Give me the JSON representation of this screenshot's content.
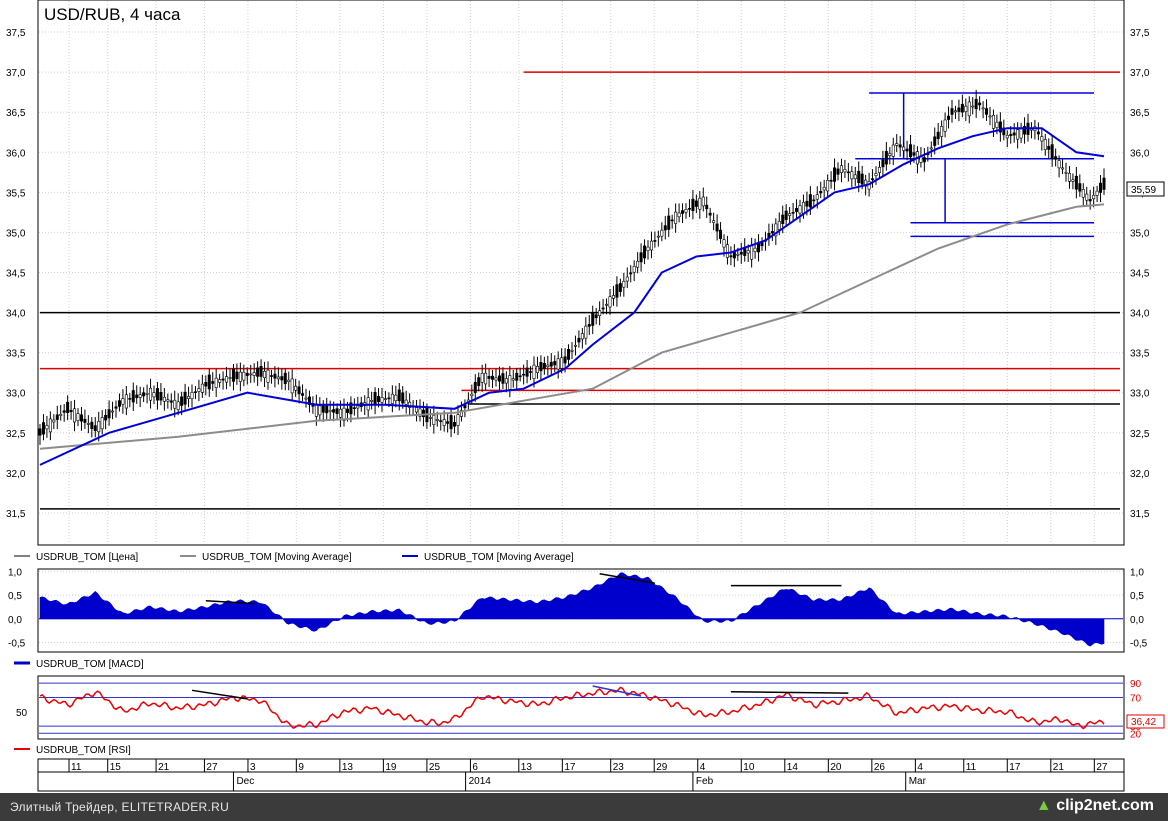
{
  "chart_title": "USD/RUB, 4 часа",
  "colors": {
    "grid": "#d0d0d0",
    "axis": "#000000",
    "candles": "#000000",
    "ma_long": "#8c8c8c",
    "ma_short": "#0000dd",
    "resistance": "#dd0000",
    "support": "#000000",
    "macd": "#0000cc",
    "rsi": "#ee0000",
    "rsi_band": "#3333cc",
    "divergence": "#000000"
  },
  "chart_data": [
    {
      "type": "line",
      "panel": "price",
      "title": "USD/RUB, 4 часа",
      "ylim": [
        31.1,
        37.9
      ],
      "yticks": [
        "37,5",
        "37,0",
        "36,5",
        "36,0",
        "35,5",
        "35,0",
        "34,5",
        "34,0",
        "33,5",
        "33,0",
        "32,5",
        "32,0",
        "31,5"
      ],
      "last_value_label": "35,59",
      "last_value": 35.59,
      "legend": [
        "USDRUB_TOM [Цена]",
        "USDRUB_TOM [Moving Average]",
        "USDRUB_TOM [Moving Average]"
      ],
      "x_index_range": [
        0,
        154
      ],
      "price": {
        "x": [
          0,
          4,
          8,
          12,
          16,
          20,
          24,
          28,
          32,
          36,
          40,
          44,
          48,
          52,
          56,
          60,
          64,
          68,
          72,
          76,
          80,
          84,
          88,
          92,
          96,
          100,
          104,
          108,
          112,
          116,
          120,
          124,
          128,
          132,
          136,
          140,
          144,
          148,
          152,
          154
        ],
        "y": [
          32.5,
          32.8,
          32.55,
          32.9,
          33.0,
          32.85,
          33.1,
          33.2,
          33.25,
          33.15,
          32.8,
          32.75,
          32.9,
          32.95,
          32.7,
          32.6,
          33.2,
          33.15,
          33.3,
          33.4,
          33.9,
          34.3,
          34.8,
          35.2,
          35.4,
          34.7,
          34.8,
          35.2,
          35.4,
          35.8,
          35.6,
          36.1,
          35.9,
          36.5,
          36.6,
          36.2,
          36.3,
          35.8,
          35.4,
          35.59
        ]
      },
      "series": [
        {
          "name": "USDRUB_TOM [Moving Average]",
          "role": "long",
          "x": [
            0,
            20,
            40,
            60,
            70,
            80,
            90,
            100,
            110,
            120,
            130,
            140,
            150,
            154
          ],
          "y": [
            32.3,
            32.45,
            32.65,
            32.75,
            32.9,
            33.05,
            33.5,
            33.75,
            34.0,
            34.4,
            34.8,
            35.1,
            35.32,
            35.35
          ]
        },
        {
          "name": "USDRUB_TOM [Moving Average]",
          "role": "short",
          "x": [
            0,
            10,
            20,
            30,
            40,
            50,
            60,
            65,
            70,
            76,
            80,
            86,
            90,
            95,
            100,
            105,
            110,
            115,
            120,
            125,
            130,
            135,
            140,
            145,
            150,
            154
          ],
          "y": [
            32.1,
            32.5,
            32.75,
            33.0,
            32.85,
            32.85,
            32.8,
            33.0,
            33.05,
            33.3,
            33.6,
            34.0,
            34.5,
            34.7,
            34.75,
            34.9,
            35.2,
            35.5,
            35.6,
            35.85,
            36.05,
            36.2,
            36.3,
            36.3,
            36.0,
            35.95
          ]
        }
      ],
      "horizontal_lines": [
        {
          "y": 37.0,
          "role": "resistance",
          "x_from": 70,
          "x_to": 154
        },
        {
          "y": 33.3,
          "role": "resistance",
          "x_from": 0,
          "x_to": 154
        },
        {
          "y": 33.03,
          "role": "resistance",
          "x_from": 61,
          "x_to": 154
        },
        {
          "y": 34.0,
          "role": "support",
          "x_from": 0,
          "x_to": 154
        },
        {
          "y": 32.86,
          "role": "support",
          "x_from": 62,
          "x_to": 154
        },
        {
          "y": 31.55,
          "role": "support",
          "x_from": 0,
          "x_to": 154
        }
      ],
      "channel_lines": [
        {
          "y": 36.74,
          "x_from": 120,
          "x_to": 154
        },
        {
          "y": 35.92,
          "x_from": 118,
          "x_to": 154
        },
        {
          "y": 35.12,
          "x_from": 126,
          "x_to": 154
        },
        {
          "y": 34.95,
          "x_from": 126,
          "x_to": 154
        }
      ]
    },
    {
      "type": "area",
      "panel": "macd",
      "ylim": [
        -0.7,
        1.05
      ],
      "yticks": [
        "1,0",
        "0,5",
        "0,0",
        "-0,5"
      ],
      "legend": "USDRUB_TOM [MACD]",
      "x": [
        0,
        4,
        8,
        12,
        16,
        20,
        24,
        28,
        32,
        36,
        40,
        44,
        48,
        52,
        56,
        58,
        60,
        64,
        68,
        72,
        76,
        80,
        84,
        88,
        92,
        96,
        100,
        104,
        108,
        112,
        116,
        120,
        124,
        128,
        132,
        136,
        140,
        144,
        148,
        152,
        154
      ],
      "y": [
        0.45,
        0.3,
        0.55,
        0.1,
        0.25,
        0.15,
        0.25,
        0.38,
        0.35,
        -0.1,
        -0.25,
        0.05,
        0.15,
        0.18,
        -0.1,
        -0.08,
        -0.05,
        0.45,
        0.4,
        0.35,
        0.45,
        0.65,
        0.95,
        0.85,
        0.45,
        -0.05,
        -0.05,
        0.3,
        0.65,
        0.4,
        0.4,
        0.65,
        0.1,
        0.15,
        0.2,
        0.1,
        0.05,
        -0.1,
        -0.3,
        -0.55,
        -0.5
      ]
    },
    {
      "type": "line",
      "panel": "rsi",
      "ylim": [
        12,
        100
      ],
      "yticks_left": [
        "50"
      ],
      "yticks_right": [
        "90",
        "70",
        "30",
        "20"
      ],
      "rsi_bands": [
        90,
        70,
        30,
        20
      ],
      "last_value_label": "36,42",
      "last_value": 36.42,
      "legend": "USDRUB_TOM [RSI]",
      "x": [
        0,
        4,
        8,
        12,
        16,
        20,
        24,
        28,
        32,
        36,
        40,
        44,
        48,
        52,
        56,
        58,
        60,
        64,
        68,
        72,
        76,
        80,
        84,
        88,
        92,
        96,
        100,
        104,
        108,
        112,
        116,
        120,
        124,
        128,
        132,
        136,
        140,
        144,
        148,
        150,
        154
      ],
      "y": [
        70,
        60,
        78,
        50,
        62,
        55,
        60,
        70,
        66,
        30,
        32,
        50,
        55,
        45,
        35,
        34,
        40,
        72,
        65,
        60,
        70,
        76,
        80,
        72,
        60,
        45,
        50,
        60,
        74,
        60,
        65,
        72,
        48,
        55,
        58,
        52,
        50,
        35,
        40,
        30,
        36.42
      ]
    }
  ],
  "x_axis": {
    "day_ticks": [
      {
        "label": "11",
        "i": 3
      },
      {
        "label": "15",
        "i": 7
      },
      {
        "label": "21",
        "i": 12
      },
      {
        "label": "27",
        "i": 17
      },
      {
        "label": "3",
        "i": 21.5
      },
      {
        "label": "9",
        "i": 26.5
      },
      {
        "label": "13",
        "i": 31
      },
      {
        "label": "19",
        "i": 35.5
      },
      {
        "label": "25",
        "i": 40
      },
      {
        "label": "6",
        "i": 44.5
      },
      {
        "label": "13",
        "i": 49.5
      },
      {
        "label": "17",
        "i": 54
      },
      {
        "label": "23",
        "i": 59
      },
      {
        "label": "29",
        "i": 63.5
      },
      {
        "label": "4",
        "i": 68
      },
      {
        "label": "10",
        "i": 72.5
      },
      {
        "label": "14",
        "i": 77
      },
      {
        "label": "20",
        "i": 81.5
      },
      {
        "label": "26",
        "i": 86
      },
      {
        "label": "4",
        "i": 90.5
      },
      {
        "label": "11",
        "i": 95.5
      },
      {
        "label": "17",
        "i": 100
      },
      {
        "label": "21",
        "i": 104.5
      },
      {
        "label": "27",
        "i": 109
      }
    ],
    "month_ticks": [
      {
        "label": "Dec",
        "i": 20
      },
      {
        "label": "2014",
        "i": 44
      },
      {
        "label": "Feb",
        "i": 67.5
      },
      {
        "label": "Mar",
        "i": 89.5
      }
    ]
  },
  "footer": {
    "credit": "Элитный Трейдер, ELITETRADER.RU",
    "logo": "clip2net.com"
  }
}
